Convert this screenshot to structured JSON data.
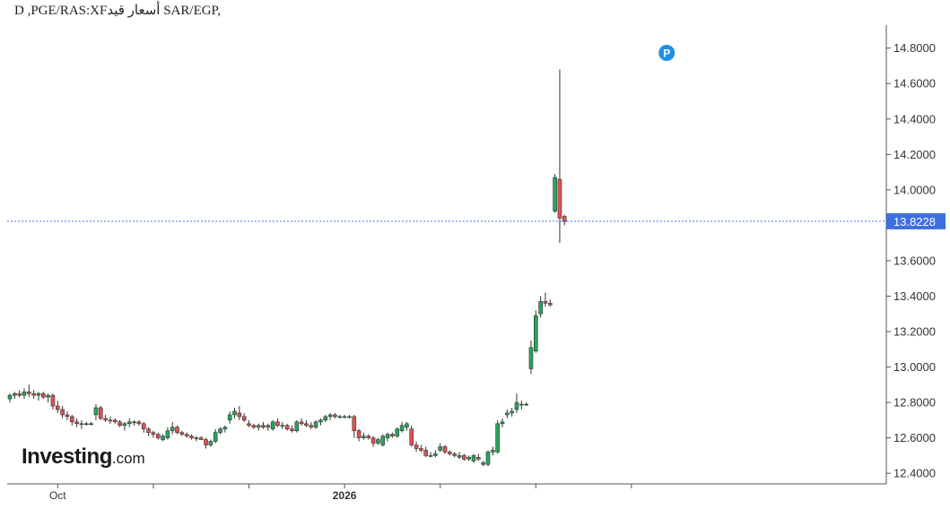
{
  "chart_title": "D ,PGE/RAS:XFأسعار قيد SAR/EGP,",
  "logo": {
    "brand": "Investing",
    "tld": ".com"
  },
  "chart_data": {
    "type": "candlestick",
    "title": "D ,PGE/RAS:XFأسعار قيد SAR/EGP,",
    "xlabel": "",
    "ylabel": "",
    "ylim": [
      12.34,
      14.93
    ],
    "y_ticks": [
      "14.8000",
      "14.6000",
      "14.4000",
      "14.2000",
      "14.0000",
      "13.8000",
      "13.6000",
      "13.4000",
      "13.2000",
      "13.0000",
      "12.8000",
      "12.6000",
      "12.4000"
    ],
    "x_tick_labels": [
      {
        "label": "Oct",
        "index": 10
      },
      {
        "label": "",
        "index": 30
      },
      {
        "label": "",
        "index": 50
      },
      {
        "label": "2026",
        "index": 70
      },
      {
        "label": "",
        "index": 90
      },
      {
        "label": "",
        "index": 110
      },
      {
        "label": "",
        "index": 130
      }
    ],
    "last_price": "13.8228",
    "last_price_value": 13.8228,
    "marker": {
      "label": "P",
      "index": 137
    },
    "colors": {
      "up": "#26a65b",
      "down": "#e05252",
      "last_price_line": "#4a78e0",
      "last_price_box": "#3d6fe0",
      "marker": "#1e90e8"
    },
    "grid": false,
    "candles": [
      [
        12.82,
        12.85,
        12.8,
        12.84
      ],
      [
        12.84,
        12.86,
        12.82,
        12.85
      ],
      [
        12.85,
        12.87,
        12.83,
        12.84
      ],
      [
        12.84,
        12.88,
        12.82,
        12.86
      ],
      [
        12.86,
        12.9,
        12.83,
        12.85
      ],
      [
        12.85,
        12.87,
        12.82,
        12.84
      ],
      [
        12.84,
        12.86,
        12.81,
        12.85
      ],
      [
        12.85,
        12.86,
        12.82,
        12.83
      ],
      [
        12.83,
        12.85,
        12.8,
        12.84
      ],
      [
        12.84,
        12.85,
        12.76,
        12.78
      ],
      [
        12.78,
        12.81,
        12.74,
        12.76
      ],
      [
        12.76,
        12.78,
        12.71,
        12.73
      ],
      [
        12.73,
        12.75,
        12.7,
        12.72
      ],
      [
        12.72,
        12.73,
        12.67,
        12.69
      ],
      [
        12.69,
        12.71,
        12.66,
        12.68
      ],
      [
        12.68,
        12.7,
        12.65,
        12.68
      ],
      [
        12.68,
        12.69,
        12.67,
        12.68
      ],
      [
        12.68,
        12.69,
        12.67,
        12.68
      ],
      [
        12.73,
        12.79,
        12.7,
        12.77
      ],
      [
        12.77,
        12.78,
        12.7,
        12.71
      ],
      [
        12.71,
        12.73,
        12.69,
        12.7
      ],
      [
        12.7,
        12.72,
        12.68,
        12.7
      ],
      [
        12.7,
        12.71,
        12.68,
        12.69
      ],
      [
        12.69,
        12.7,
        12.66,
        12.67
      ],
      [
        12.67,
        12.69,
        12.64,
        12.68
      ],
      [
        12.68,
        12.71,
        12.66,
        12.69
      ],
      [
        12.69,
        12.7,
        12.67,
        12.69
      ],
      [
        12.69,
        12.7,
        12.67,
        12.68
      ],
      [
        12.68,
        12.69,
        12.63,
        12.65
      ],
      [
        12.65,
        12.66,
        12.61,
        12.63
      ],
      [
        12.63,
        12.64,
        12.6,
        12.62
      ],
      [
        12.62,
        12.63,
        12.59,
        12.6
      ],
      [
        12.59,
        12.62,
        12.58,
        12.61
      ],
      [
        12.6,
        12.66,
        12.59,
        12.64
      ],
      [
        12.64,
        12.69,
        12.62,
        12.66
      ],
      [
        12.66,
        12.67,
        12.62,
        12.63
      ],
      [
        12.63,
        12.64,
        12.61,
        12.62
      ],
      [
        12.62,
        12.63,
        12.6,
        12.61
      ],
      [
        12.61,
        12.62,
        12.59,
        12.6
      ],
      [
        12.6,
        12.61,
        12.58,
        12.6
      ],
      [
        12.6,
        12.61,
        12.59,
        12.59
      ],
      [
        12.59,
        12.6,
        12.54,
        12.56
      ],
      [
        12.56,
        12.59,
        12.55,
        12.58
      ],
      [
        12.58,
        12.65,
        12.57,
        12.63
      ],
      [
        12.63,
        12.66,
        12.62,
        12.65
      ],
      [
        12.65,
        12.67,
        12.63,
        12.66
      ],
      [
        12.7,
        12.75,
        12.68,
        12.73
      ],
      [
        12.73,
        12.77,
        12.71,
        12.75
      ],
      [
        12.74,
        12.78,
        12.7,
        12.72
      ],
      [
        12.72,
        12.74,
        12.69,
        12.7
      ],
      [
        12.68,
        12.7,
        12.66,
        12.67
      ],
      [
        12.67,
        12.68,
        12.65,
        12.66
      ],
      [
        12.66,
        12.68,
        12.64,
        12.67
      ],
      [
        12.67,
        12.69,
        12.65,
        12.66
      ],
      [
        12.66,
        12.68,
        12.64,
        12.67
      ],
      [
        12.65,
        12.7,
        12.64,
        12.69
      ],
      [
        12.69,
        12.71,
        12.66,
        12.67
      ],
      [
        12.67,
        12.69,
        12.65,
        12.67
      ],
      [
        12.67,
        12.68,
        12.64,
        12.65
      ],
      [
        12.65,
        12.67,
        12.63,
        12.64
      ],
      [
        12.64,
        12.7,
        12.63,
        12.69
      ],
      [
        12.69,
        12.71,
        12.67,
        12.68
      ],
      [
        12.68,
        12.7,
        12.66,
        12.67
      ],
      [
        12.67,
        12.69,
        12.65,
        12.66
      ],
      [
        12.66,
        12.7,
        12.65,
        12.69
      ],
      [
        12.69,
        12.71,
        12.67,
        12.7
      ],
      [
        12.7,
        12.73,
        12.69,
        12.72
      ],
      [
        12.72,
        12.74,
        12.7,
        12.73
      ],
      [
        12.73,
        12.74,
        12.71,
        12.72
      ],
      [
        12.72,
        12.73,
        12.71,
        12.72
      ],
      [
        12.72,
        12.73,
        12.71,
        12.72
      ],
      [
        12.72,
        12.73,
        12.71,
        12.72
      ],
      [
        12.72,
        12.73,
        12.6,
        12.64
      ],
      [
        12.64,
        12.65,
        12.58,
        12.6
      ],
      [
        12.6,
        12.63,
        12.59,
        12.61
      ],
      [
        12.61,
        12.62,
        12.59,
        12.6
      ],
      [
        12.6,
        12.61,
        12.55,
        12.57
      ],
      [
        12.57,
        12.6,
        12.56,
        12.59
      ],
      [
        12.56,
        12.62,
        12.55,
        12.61
      ],
      [
        12.6,
        12.63,
        12.58,
        12.62
      ],
      [
        12.62,
        12.63,
        12.6,
        12.61
      ],
      [
        12.61,
        12.66,
        12.6,
        12.65
      ],
      [
        12.64,
        12.69,
        12.63,
        12.67
      ],
      [
        12.66,
        12.69,
        12.64,
        12.68
      ],
      [
        12.65,
        12.67,
        12.55,
        12.56
      ],
      [
        12.56,
        12.58,
        12.52,
        12.54
      ],
      [
        12.54,
        12.56,
        12.52,
        12.53
      ],
      [
        12.53,
        12.55,
        12.49,
        12.5
      ],
      [
        12.5,
        12.52,
        12.49,
        12.5
      ],
      [
        12.5,
        12.53,
        12.49,
        12.51
      ],
      [
        12.53,
        12.57,
        12.52,
        12.55
      ],
      [
        12.55,
        12.56,
        12.51,
        12.52
      ],
      [
        12.52,
        12.53,
        12.5,
        12.51
      ],
      [
        12.51,
        12.52,
        12.49,
        12.5
      ],
      [
        12.49,
        12.52,
        12.48,
        12.5
      ],
      [
        12.5,
        12.51,
        12.47,
        12.48
      ],
      [
        12.48,
        12.5,
        12.47,
        12.49
      ],
      [
        12.47,
        12.51,
        12.46,
        12.5
      ],
      [
        12.49,
        12.51,
        12.47,
        12.48
      ],
      [
        12.45,
        12.47,
        12.44,
        12.46
      ],
      [
        12.45,
        12.53,
        12.44,
        12.52
      ],
      [
        12.52,
        12.55,
        12.5,
        12.53
      ],
      [
        12.52,
        12.7,
        12.51,
        12.68
      ],
      [
        12.68,
        12.71,
        12.66,
        12.69
      ],
      [
        12.73,
        12.76,
        12.71,
        12.74
      ],
      [
        12.74,
        12.77,
        12.72,
        12.75
      ],
      [
        12.76,
        12.85,
        12.74,
        12.8
      ],
      [
        12.79,
        12.81,
        12.76,
        12.79
      ],
      [
        12.79,
        12.8,
        12.78,
        12.79
      ],
      [
        12.99,
        13.15,
        12.96,
        13.11
      ],
      [
        13.09,
        13.32,
        13.08,
        13.29
      ],
      [
        13.3,
        13.4,
        13.28,
        13.37
      ],
      [
        13.37,
        13.42,
        13.34,
        13.36
      ],
      [
        13.36,
        13.38,
        13.34,
        13.35
      ],
      [
        13.88,
        14.09,
        13.87,
        14.07
      ],
      [
        14.06,
        14.68,
        13.7,
        13.84
      ],
      [
        13.85,
        13.86,
        13.8,
        13.82
      ]
    ]
  }
}
